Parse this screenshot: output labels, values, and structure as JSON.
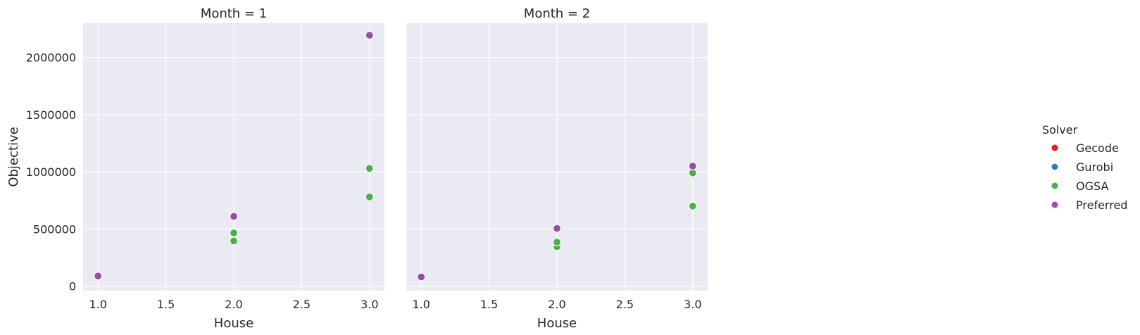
{
  "chart_data": {
    "type": "scatter",
    "xlabel": "House",
    "ylabel": "Objective",
    "xlim": [
      0.89,
      3.11
    ],
    "ylim": [
      -40000,
      2300000
    ],
    "x_ticks": [
      1.0,
      1.5,
      2.0,
      2.5,
      3.0
    ],
    "x_tick_labels": [
      "1.0",
      "1.5",
      "2.0",
      "2.5",
      "3.0"
    ],
    "y_ticks": [
      0,
      500000,
      1000000,
      1500000,
      2000000
    ],
    "y_tick_labels": [
      "0",
      "500000",
      "1000000",
      "1500000",
      "2000000"
    ],
    "grid": true,
    "legend": {
      "title": "Solver",
      "placement": "right",
      "entries": [
        {
          "name": "Gecode",
          "color": "#e41a1c"
        },
        {
          "name": "Gurobi",
          "color": "#377eb8"
        },
        {
          "name": "OGSA",
          "color": "#4daf4a"
        },
        {
          "name": "Preferred",
          "color": "#984ea3"
        }
      ]
    },
    "panels": [
      {
        "title": "Month = 1",
        "series": [
          {
            "name": "OGSA",
            "color": "#4daf4a",
            "points": [
              [
                2,
                465000
              ],
              [
                2,
                395000
              ],
              [
                3,
                1030000
              ],
              [
                3,
                780000
              ]
            ]
          },
          {
            "name": "Preferred",
            "color": "#984ea3",
            "points": [
              [
                1,
                88000
              ],
              [
                2,
                610000
              ],
              [
                3,
                2195000
              ]
            ]
          }
        ]
      },
      {
        "title": "Month = 2",
        "series": [
          {
            "name": "OGSA",
            "color": "#4daf4a",
            "points": [
              [
                2,
                345000
              ],
              [
                2,
                385000
              ],
              [
                3,
                990000
              ],
              [
                3,
                700000
              ]
            ]
          },
          {
            "name": "Preferred",
            "color": "#984ea3",
            "points": [
              [
                1,
                80000
              ],
              [
                2,
                505000
              ],
              [
                3,
                1050000
              ]
            ]
          }
        ]
      }
    ]
  }
}
